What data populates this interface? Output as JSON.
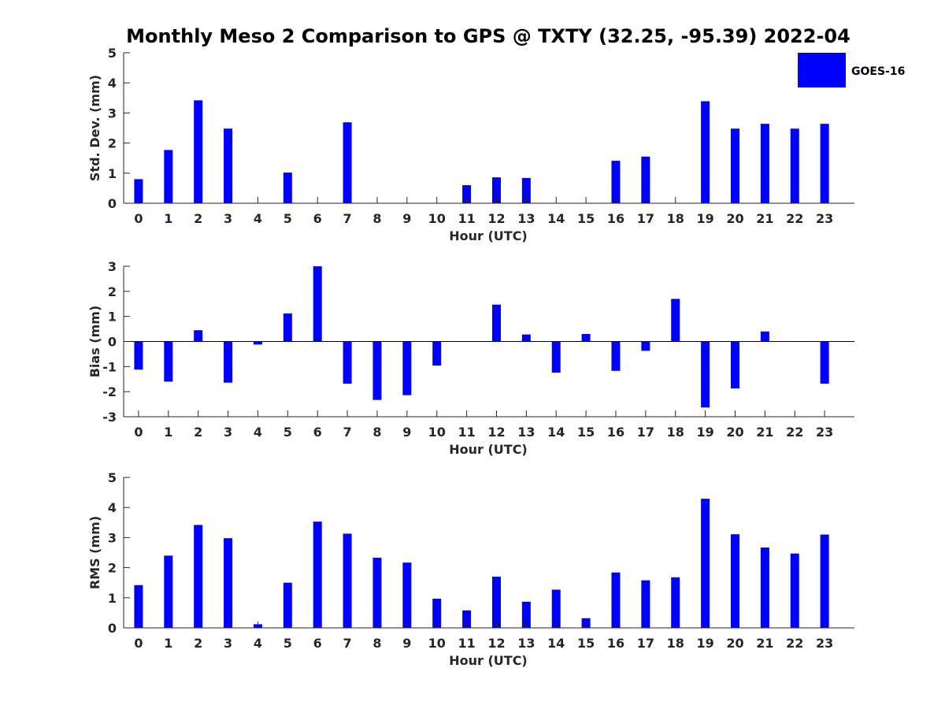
{
  "title": "Monthly Meso 2 Comparison to GPS @ TXTY (32.25, -95.39) 2022-04",
  "chart_data": [
    {
      "type": "bar",
      "name": "std-dev",
      "categories": [
        "0",
        "1",
        "2",
        "3",
        "4",
        "5",
        "6",
        "7",
        "8",
        "9",
        "10",
        "11",
        "12",
        "13",
        "14",
        "15",
        "16",
        "17",
        "18",
        "19",
        "20",
        "21",
        "22",
        "23"
      ],
      "series": [
        {
          "name": "GOES-16",
          "color": "#0000ff",
          "values": [
            0.8,
            1.77,
            3.42,
            2.48,
            0,
            1.02,
            0,
            2.69,
            0,
            0,
            0,
            0.6,
            0.86,
            0.84,
            0,
            0,
            1.41,
            1.55,
            0,
            3.39,
            2.48,
            2.64,
            2.48,
            2.64
          ]
        }
      ],
      "xlabel": "Hour (UTC)",
      "ylabel": "Std. Dev. (mm)",
      "ylim": [
        0,
        5
      ],
      "yticks": [
        "0",
        "1",
        "2",
        "3",
        "4",
        "5"
      ],
      "grid": false,
      "legend": {
        "placement": "top-right",
        "entries": [
          "GOES-16"
        ]
      }
    },
    {
      "type": "bar",
      "name": "bias",
      "categories": [
        "0",
        "1",
        "2",
        "3",
        "4",
        "5",
        "6",
        "7",
        "8",
        "9",
        "10",
        "11",
        "12",
        "13",
        "14",
        "15",
        "16",
        "17",
        "18",
        "19",
        "20",
        "21",
        "22",
        "23"
      ],
      "series": [
        {
          "name": "GOES-16",
          "color": "#0000ff",
          "values": [
            -1.12,
            -1.6,
            0.45,
            -1.64,
            -0.12,
            1.12,
            3.0,
            -1.68,
            -2.33,
            -2.14,
            -0.96,
            0,
            1.47,
            0.28,
            -1.24,
            0.3,
            -1.17,
            -0.37,
            1.7,
            -2.63,
            -1.87,
            0.4,
            0,
            -1.68
          ]
        }
      ],
      "xlabel": "Hour (UTC)",
      "ylabel": "Bias (mm)",
      "ylim": [
        -3,
        3
      ],
      "yticks": [
        "-3",
        "-2",
        "-1",
        "0",
        "1",
        "2",
        "3"
      ],
      "grid": false,
      "zero_line": true
    },
    {
      "type": "bar",
      "name": "rms",
      "categories": [
        "0",
        "1",
        "2",
        "3",
        "4",
        "5",
        "6",
        "7",
        "8",
        "9",
        "10",
        "11",
        "12",
        "13",
        "14",
        "15",
        "16",
        "17",
        "18",
        "19",
        "20",
        "21",
        "22",
        "23"
      ],
      "series": [
        {
          "name": "GOES-16",
          "color": "#0000ff",
          "values": [
            1.42,
            2.4,
            3.42,
            2.98,
            0.12,
            1.5,
            3.53,
            3.13,
            2.33,
            2.17,
            0.97,
            0.58,
            1.7,
            0.87,
            1.27,
            0.32,
            1.84,
            1.58,
            1.68,
            4.29,
            3.11,
            2.67,
            2.47,
            3.1
          ]
        }
      ],
      "xlabel": "Hour (UTC)",
      "ylabel": "RMS (mm)",
      "ylim": [
        0,
        5
      ],
      "yticks": [
        "0",
        "1",
        "2",
        "3",
        "4",
        "5"
      ],
      "grid": false
    }
  ]
}
